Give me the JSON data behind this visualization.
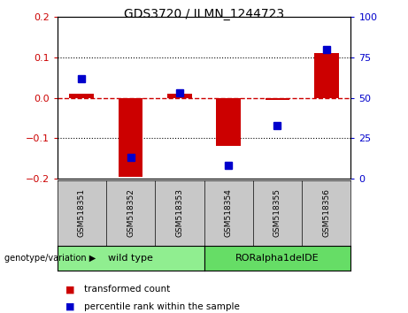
{
  "title": "GDS3720 / ILMN_1244723",
  "samples": [
    "GSM518351",
    "GSM518352",
    "GSM518353",
    "GSM518354",
    "GSM518355",
    "GSM518356"
  ],
  "red_values": [
    0.01,
    -0.195,
    0.01,
    -0.12,
    -0.005,
    0.11
  ],
  "blue_values_pct": [
    62,
    13,
    53,
    8,
    33,
    80
  ],
  "groups": [
    {
      "label": "wild type",
      "indices": [
        0,
        1,
        2
      ],
      "color": "#90EE90"
    },
    {
      "label": "RORalpha1delDE",
      "indices": [
        3,
        4,
        5
      ],
      "color": "#66DD66"
    }
  ],
  "ylim_left": [
    -0.2,
    0.2
  ],
  "ylim_right": [
    0,
    100
  ],
  "yticks_left": [
    -0.2,
    -0.1,
    0.0,
    0.1,
    0.2
  ],
  "yticks_right": [
    0,
    25,
    50,
    75,
    100
  ],
  "left_color": "#CC0000",
  "right_color": "#0000CC",
  "bar_width": 0.5,
  "marker_size": 6,
  "sample_box_color": "#C8C8C8",
  "legend_red": "transformed count",
  "legend_blue": "percentile rank within the sample",
  "group_label_prefix": "genotype/variation"
}
